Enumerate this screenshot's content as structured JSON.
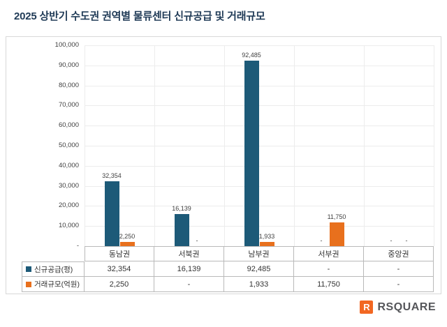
{
  "page_title": "2025 상반기 수도권 권역별 물류센터 신규공급 및 거래규모",
  "chart_data": {
    "type": "bar",
    "title": "2025 상반기 수도권 권역별 물류센터 신규공급 및 거래규모",
    "categories": [
      "동남권",
      "서북권",
      "남부권",
      "서부권",
      "중앙권"
    ],
    "series": [
      {
        "name": "신규공급(평)",
        "color": "#1d5a78",
        "values": [
          32354,
          16139,
          92485,
          null,
          null
        ]
      },
      {
        "name": "거래규모(억원)",
        "color": "#e8701d",
        "values": [
          2250,
          null,
          1933,
          11750,
          null
        ]
      }
    ],
    "ylim": [
      0,
      100000
    ],
    "ytick_step": 10000,
    "ytick_zero_label": "-",
    "null_label": "-",
    "grid": true,
    "legend_position": "table-left",
    "table_values": [
      [
        "32,354",
        "16,139",
        "92,485",
        "-",
        "-"
      ],
      [
        "2,250",
        "-",
        "1,933",
        "11,750",
        "-"
      ]
    ]
  },
  "logo": {
    "icon": "rsquare-mark",
    "icon_letter": "R",
    "text": "RSQUARE",
    "accent_color": "#f26722"
  }
}
